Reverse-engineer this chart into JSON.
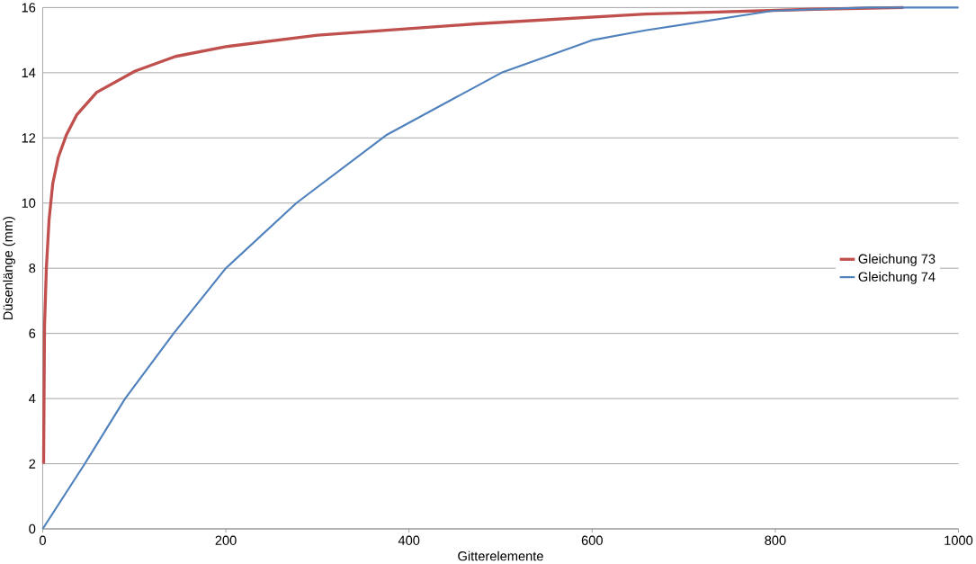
{
  "chart_data": {
    "type": "line",
    "xlabel": "Gitterelemente",
    "ylabel": "Düsenlänge (mm)",
    "xlim": [
      0,
      1000
    ],
    "xticks": [
      0,
      200,
      400,
      600,
      800,
      1000
    ],
    "ylim": [
      0,
      16
    ],
    "yticks": [
      0,
      2,
      4,
      6,
      8,
      10,
      12,
      14,
      16
    ],
    "grid": "y",
    "legend": "right",
    "marker": "none",
    "line_style": "solid",
    "series": [
      {
        "name": "Gleichung 73",
        "color": "#c0504d",
        "x": [
          1,
          2,
          4,
          7,
          11,
          17,
          26,
          37,
          59,
          101,
          145,
          200,
          300,
          473,
          658,
          843,
          940
        ],
        "values": [
          2.0,
          6.2,
          8.0,
          9.5,
          10.6,
          11.4,
          12.1,
          12.7,
          13.4,
          14.05,
          14.5,
          14.8,
          15.15,
          15.5,
          15.8,
          15.95,
          16.0
        ]
      },
      {
        "name": "Gleichung 74",
        "color": "#4f81bd",
        "x": [
          0,
          46,
          90,
          143,
          200,
          277,
          376,
          501,
          600,
          658,
          797,
          900,
          1000
        ],
        "values": [
          0,
          2.0,
          4.0,
          6.0,
          8.0,
          10.0,
          12.1,
          14.0,
          15.0,
          15.3,
          15.9,
          16.0,
          16.0
        ]
      }
    ]
  }
}
